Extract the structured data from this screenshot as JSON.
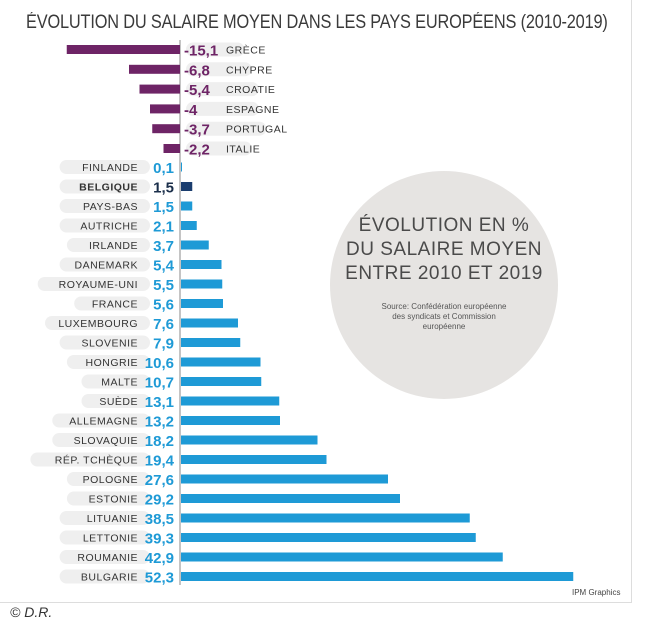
{
  "chart_data": {
    "type": "bar",
    "orientation": "horizontal",
    "title": "ÉVOLUTION DU SALAIRE MOYEN DANS LES PAYS EUROPÉENS (2010-2019)",
    "negative_color": "#6e2466",
    "positive_color": "#1e9ad6",
    "highlight_color": "#1a3d6e",
    "negative": [
      {
        "label": "GRÈCE",
        "value_label": "-15,1",
        "value": -15.1
      },
      {
        "label": "CHYPRE",
        "value_label": "-6,8",
        "value": -6.8
      },
      {
        "label": "CROATIE",
        "value_label": "-5,4",
        "value": -5.4
      },
      {
        "label": "ESPAGNE",
        "value_label": "-4",
        "value": -4
      },
      {
        "label": "PORTUGAL",
        "value_label": "-3,7",
        "value": -3.7
      },
      {
        "label": "ITALIE",
        "value_label": "-2,2",
        "value": -2.2
      }
    ],
    "positive": [
      {
        "label": "FINLANDE",
        "value_label": "0,1",
        "value": 0.1
      },
      {
        "label": "BELGIQUE",
        "value_label": "1,5",
        "value": 1.5,
        "highlight": true
      },
      {
        "label": "PAYS-BAS",
        "value_label": "1,5",
        "value": 1.5
      },
      {
        "label": "AUTRICHE",
        "value_label": "2,1",
        "value": 2.1
      },
      {
        "label": "IRLANDE",
        "value_label": "3,7",
        "value": 3.7
      },
      {
        "label": "DANEMARK",
        "value_label": "5,4",
        "value": 5.4
      },
      {
        "label": "ROYAUME-UNI",
        "value_label": "5,5",
        "value": 5.5
      },
      {
        "label": "FRANCE",
        "value_label": "5,6",
        "value": 5.6
      },
      {
        "label": "LUXEMBOURG",
        "value_label": "7,6",
        "value": 7.6
      },
      {
        "label": "SLOVENIE",
        "value_label": "7,9",
        "value": 7.9
      },
      {
        "label": "HONGRIE",
        "value_label": "10,6",
        "value": 10.6
      },
      {
        "label": "MALTE",
        "value_label": "10,7",
        "value": 10.7
      },
      {
        "label": "SUÈDE",
        "value_label": "13,1",
        "value": 13.1
      },
      {
        "label": "ALLEMAGNE",
        "value_label": "13,2",
        "value": 13.2
      },
      {
        "label": "SLOVAQUIE",
        "value_label": "18,2",
        "value": 18.2
      },
      {
        "label": "RÉP. TCHÈQUE",
        "value_label": "19,4",
        "value": 19.4
      },
      {
        "label": "POLOGNE",
        "value_label": "27,6",
        "value": 27.6
      },
      {
        "label": "ESTONIE",
        "value_label": "29,2",
        "value": 29.2
      },
      {
        "label": "LITUANIE",
        "value_label": "38,5",
        "value": 38.5
      },
      {
        "label": "LETTONIE",
        "value_label": "39,3",
        "value": 39.3
      },
      {
        "label": "ROUMANIE",
        "value_label": "42,9",
        "value": 42.9
      },
      {
        "label": "BULGARIE",
        "value_label": "52,3",
        "value": 52.3
      }
    ]
  },
  "circle": {
    "line1": "ÉVOLUTION EN %",
    "line2": "DU SALAIRE MOYEN",
    "line3": "ENTRE 2010 ET 2019",
    "source": "Source: Confédération européenne des syndicats et Commission européenne"
  },
  "credit": "IPM Graphics",
  "copyright": "© D.R."
}
